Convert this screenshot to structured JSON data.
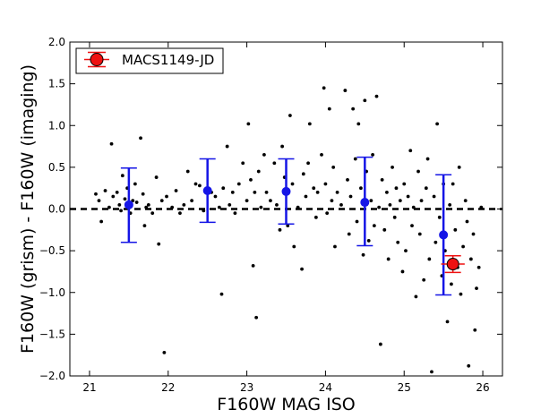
{
  "chart_data": {
    "type": "scatter",
    "xlabel": "F160W MAG ISO",
    "ylabel": "F160W (grism) - F160W (imaging)",
    "xlim": [
      20.75,
      26.25
    ],
    "ylim": [
      -2.0,
      2.0
    ],
    "x_ticks": [
      21,
      22,
      23,
      24,
      25,
      26
    ],
    "y_ticks": [
      2.0,
      1.5,
      1.0,
      0.5,
      0.0,
      -0.5,
      -1.0,
      -1.5,
      -2.0
    ],
    "x_tick_labels": [
      "21",
      "22",
      "23",
      "24",
      "25",
      "26"
    ],
    "y_tick_labels": [
      "2.0",
      "1.5",
      "1.0",
      "0.5",
      "0.0",
      "−0.5",
      "−1.0",
      "−1.5",
      "−2.0"
    ],
    "reference_line": {
      "y": 0.0,
      "style": "dashed",
      "color": "#000000"
    },
    "legend": {
      "placement": "top-left",
      "entries": [
        "MACS1149-JD"
      ]
    },
    "colors": {
      "points": "#000000",
      "binned": "#1515e6",
      "highlight": "#ee1111"
    },
    "binned_means": [
      {
        "x": 21.5,
        "y": 0.05,
        "err_low": 0.45,
        "err_high": 0.44
      },
      {
        "x": 22.5,
        "y": 0.22,
        "err_low": 0.38,
        "err_high": 0.38
      },
      {
        "x": 23.5,
        "y": 0.21,
        "err_low": 0.39,
        "err_high": 0.39
      },
      {
        "x": 24.5,
        "y": 0.08,
        "err_low": 0.52,
        "err_high": 0.54
      },
      {
        "x": 25.5,
        "y": -0.31,
        "err_low": 0.72,
        "err_high": 0.72
      }
    ],
    "highlight_point": {
      "name": "MACS1149-JD",
      "x": 25.62,
      "y": -0.66,
      "xerr": 0.15,
      "yerr": 0.1
    },
    "scatter_points": [
      [
        21.08,
        0.18
      ],
      [
        21.12,
        0.1
      ],
      [
        21.15,
        -0.15
      ],
      [
        21.2,
        0.22
      ],
      [
        21.25,
        0.02
      ],
      [
        21.28,
        0.78
      ],
      [
        21.3,
        0.15
      ],
      [
        21.35,
        0.2
      ],
      [
        21.38,
        0.05
      ],
      [
        21.4,
        -0.02
      ],
      [
        21.42,
        0.4
      ],
      [
        21.45,
        0.12
      ],
      [
        21.48,
        0.25
      ],
      [
        21.52,
        -0.05
      ],
      [
        21.55,
        0.1
      ],
      [
        21.58,
        0.3
      ],
      [
        21.6,
        0.08
      ],
      [
        21.65,
        0.85
      ],
      [
        21.68,
        0.18
      ],
      [
        21.7,
        -0.2
      ],
      [
        21.72,
        0.02
      ],
      [
        21.75,
        0.05
      ],
      [
        21.8,
        -0.05
      ],
      [
        21.85,
        0.38
      ],
      [
        21.88,
        -0.42
      ],
      [
        21.92,
        0.1
      ],
      [
        21.95,
        -1.72
      ],
      [
        21.98,
        0.15
      ],
      [
        22.05,
        0.02
      ],
      [
        22.1,
        0.22
      ],
      [
        22.15,
        -0.05
      ],
      [
        22.2,
        0.05
      ],
      [
        22.25,
        0.45
      ],
      [
        22.3,
        0.1
      ],
      [
        22.35,
        0.3
      ],
      [
        22.4,
        0.28
      ],
      [
        22.45,
        -0.02
      ],
      [
        22.55,
        0.2
      ],
      [
        22.6,
        0.15
      ],
      [
        22.65,
        0.02
      ],
      [
        22.68,
        -1.02
      ],
      [
        22.7,
        0.25
      ],
      [
        22.75,
        0.75
      ],
      [
        22.78,
        0.05
      ],
      [
        22.82,
        0.2
      ],
      [
        22.85,
        -0.05
      ],
      [
        22.9,
        0.3
      ],
      [
        22.95,
        0.55
      ],
      [
        23.0,
        0.1
      ],
      [
        23.02,
        1.02
      ],
      [
        23.05,
        0.35
      ],
      [
        23.08,
        -0.68
      ],
      [
        23.1,
        0.2
      ],
      [
        23.12,
        -1.3
      ],
      [
        23.15,
        0.45
      ],
      [
        23.18,
        0.02
      ],
      [
        23.22,
        0.65
      ],
      [
        23.25,
        0.2
      ],
      [
        23.3,
        0.1
      ],
      [
        23.35,
        0.55
      ],
      [
        23.38,
        0.05
      ],
      [
        23.42,
        -0.25
      ],
      [
        23.45,
        0.75
      ],
      [
        23.48,
        0.38
      ],
      [
        23.52,
        -0.2
      ],
      [
        23.55,
        1.12
      ],
      [
        23.58,
        0.3
      ],
      [
        23.6,
        -0.45
      ],
      [
        23.65,
        0.02
      ],
      [
        23.7,
        -0.72
      ],
      [
        23.72,
        0.42
      ],
      [
        23.75,
        0.15
      ],
      [
        23.78,
        0.55
      ],
      [
        23.8,
        1.02
      ],
      [
        23.85,
        0.25
      ],
      [
        23.88,
        -0.1
      ],
      [
        23.9,
        0.2
      ],
      [
        23.95,
        0.65
      ],
      [
        23.98,
        1.45
      ],
      [
        24.0,
        0.3
      ],
      [
        24.02,
        -0.05
      ],
      [
        24.05,
        1.2
      ],
      [
        24.08,
        0.1
      ],
      [
        24.1,
        0.5
      ],
      [
        24.12,
        -0.45
      ],
      [
        24.15,
        0.2
      ],
      [
        24.2,
        0.05
      ],
      [
        24.25,
        1.42
      ],
      [
        24.28,
        0.35
      ],
      [
        24.3,
        -0.3
      ],
      [
        24.32,
        0.15
      ],
      [
        24.35,
        1.2
      ],
      [
        24.38,
        0.6
      ],
      [
        24.4,
        -0.15
      ],
      [
        24.42,
        1.02
      ],
      [
        24.45,
        0.25
      ],
      [
        24.48,
        -0.55
      ],
      [
        24.5,
        1.3
      ],
      [
        24.52,
        0.45
      ],
      [
        24.55,
        -0.38
      ],
      [
        24.58,
        0.1
      ],
      [
        24.6,
        0.65
      ],
      [
        24.62,
        -0.2
      ],
      [
        24.65,
        1.35
      ],
      [
        24.68,
        0.02
      ],
      [
        24.7,
        -1.62
      ],
      [
        24.72,
        0.35
      ],
      [
        24.75,
        -0.25
      ],
      [
        24.78,
        0.2
      ],
      [
        24.8,
        -0.6
      ],
      [
        24.82,
        0.05
      ],
      [
        24.85,
        0.5
      ],
      [
        24.88,
        -0.1
      ],
      [
        24.9,
        0.25
      ],
      [
        24.92,
        -0.4
      ],
      [
        24.95,
        0.1
      ],
      [
        24.98,
        -0.75
      ],
      [
        25.0,
        0.3
      ],
      [
        25.02,
        -0.5
      ],
      [
        25.05,
        0.15
      ],
      [
        25.08,
        0.7
      ],
      [
        25.1,
        -0.2
      ],
      [
        25.12,
        0.02
      ],
      [
        25.15,
        -1.05
      ],
      [
        25.18,
        0.45
      ],
      [
        25.2,
        -0.3
      ],
      [
        25.22,
        0.1
      ],
      [
        25.25,
        -0.85
      ],
      [
        25.28,
        0.25
      ],
      [
        25.3,
        0.6
      ],
      [
        25.32,
        -0.6
      ],
      [
        25.35,
        -1.95
      ],
      [
        25.38,
        0.15
      ],
      [
        25.4,
        -0.4
      ],
      [
        25.42,
        1.02
      ],
      [
        25.45,
        -0.1
      ],
      [
        25.48,
        -0.8
      ],
      [
        25.5,
        0.3
      ],
      [
        25.52,
        -0.5
      ],
      [
        25.55,
        -1.35
      ],
      [
        25.58,
        0.05
      ],
      [
        25.6,
        -0.9
      ],
      [
        25.62,
        0.3
      ],
      [
        25.65,
        -0.25
      ],
      [
        25.68,
        -0.7
      ],
      [
        25.7,
        0.5
      ],
      [
        25.72,
        -1.02
      ],
      [
        25.75,
        -0.45
      ],
      [
        25.78,
        0.1
      ],
      [
        25.8,
        -0.15
      ],
      [
        25.82,
        -1.88
      ],
      [
        25.85,
        -0.6
      ],
      [
        25.88,
        -0.3
      ],
      [
        25.9,
        -1.45
      ],
      [
        25.92,
        -0.95
      ],
      [
        25.95,
        -0.7
      ],
      [
        25.98,
        0.02
      ]
    ]
  }
}
